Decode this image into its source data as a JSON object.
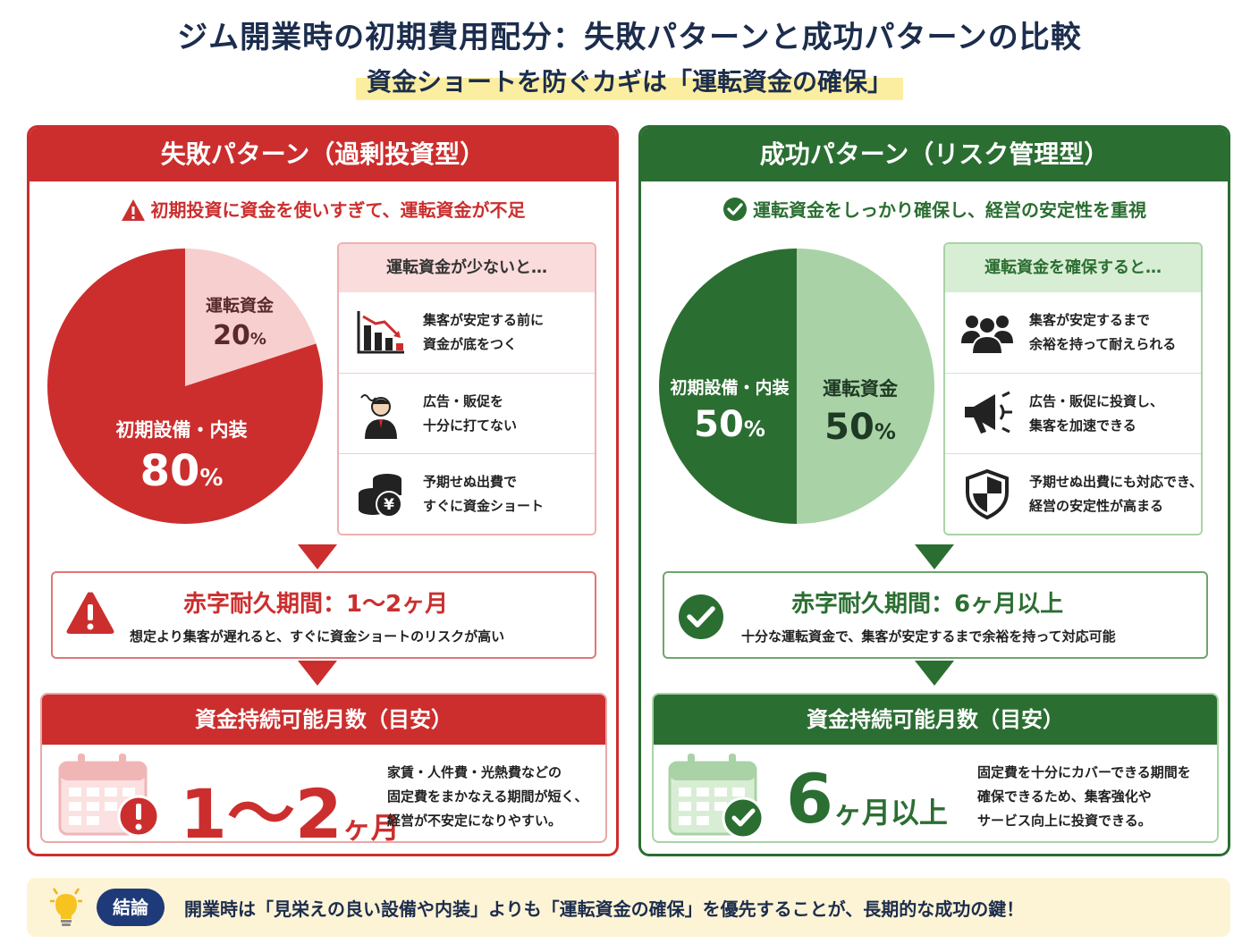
{
  "title": "ジム開業時の初期費用配分：失敗パターンと成功パターンの比較",
  "subtitle": "資金ショートを防ぐカギは「運転資金の確保」",
  "fail": {
    "header": "失敗パターン（過剰投資型）",
    "tagline": "初期投資に資金を使いすぎて、運転資金が不足",
    "pie": {
      "slices": [
        {
          "name": "運転資金",
          "value": 20,
          "color": "#f7cfcf"
        },
        {
          "name": "初期設備・内装",
          "value": 80,
          "color": "#cc2e2e"
        }
      ],
      "label_working": "運転資金",
      "value_working": "20",
      "label_equipment": "初期設備・内装",
      "value_equipment": "80",
      "unit": "%"
    },
    "effects_header": "運転資金が少ないと…",
    "effects": [
      {
        "icon": "declining-chart-icon",
        "line1": "集客が安定する前に",
        "line2": "資金が底をつく"
      },
      {
        "icon": "worried-person-icon",
        "line1": "広告・販促を",
        "line2": "十分に打てない"
      },
      {
        "icon": "yen-coins-icon",
        "line1": "予期せぬ出費で",
        "line2": "すぐに資金ショート"
      }
    ],
    "survival_title": "赤字耐久期間：1〜2ヶ月",
    "survival_sub": "想定より集客が遅れると、すぐに資金ショートのリスクが高い",
    "months_header": "資金持続可能月数（目安）",
    "months_value": "1〜2",
    "months_unit": "ヶ月",
    "months_desc": [
      "家賃・人件費・光熱費などの",
      "固定費をまかなえる期間が短く、",
      "経営が不安定になりやすい。"
    ]
  },
  "ok": {
    "header": "成功パターン（リスク管理型）",
    "tagline": "運転資金をしっかり確保し、経営の安定性を重視",
    "pie": {
      "slices": [
        {
          "name": "運転資金",
          "value": 50,
          "color": "#a9d3a6"
        },
        {
          "name": "初期設備・内装",
          "value": 50,
          "color": "#2b6e32"
        }
      ],
      "label_equipment": "初期設備・内装",
      "value_equipment": "50",
      "label_working": "運転資金",
      "value_working": "50",
      "unit": "%"
    },
    "effects_header": "運転資金を確保すると…",
    "effects": [
      {
        "icon": "people-group-icon",
        "line1": "集客が安定するまで",
        "line2": "余裕を持って耐えられる"
      },
      {
        "icon": "megaphone-icon",
        "line1": "広告・販促に投資し、",
        "line2": "集客を加速できる"
      },
      {
        "icon": "shield-icon",
        "line1": "予期せぬ出費にも対応でき、",
        "line2": "経営の安定性が高まる"
      }
    ],
    "survival_title": "赤字耐久期間：6ヶ月以上",
    "survival_sub": "十分な運転資金で、集客が安定するまで余裕を持って対応可能",
    "months_header": "資金持続可能月数（目安）",
    "months_value": "6",
    "months_unit": "ヶ月以上",
    "months_desc": [
      "固定費を十分にカバーできる期間を",
      "確保できるため、集客強化や",
      "サービス向上に投資できる。"
    ]
  },
  "conclusion": {
    "badge": "結論",
    "text": "開業時は「見栄えの良い設備や内装」よりも「運転資金の確保」を優先することが、長期的な成功の鍵！"
  },
  "colors": {
    "red": "#cc2e2e",
    "green": "#2b6e32",
    "navy": "#1c2d4d",
    "highlight": "#fbeea0"
  }
}
